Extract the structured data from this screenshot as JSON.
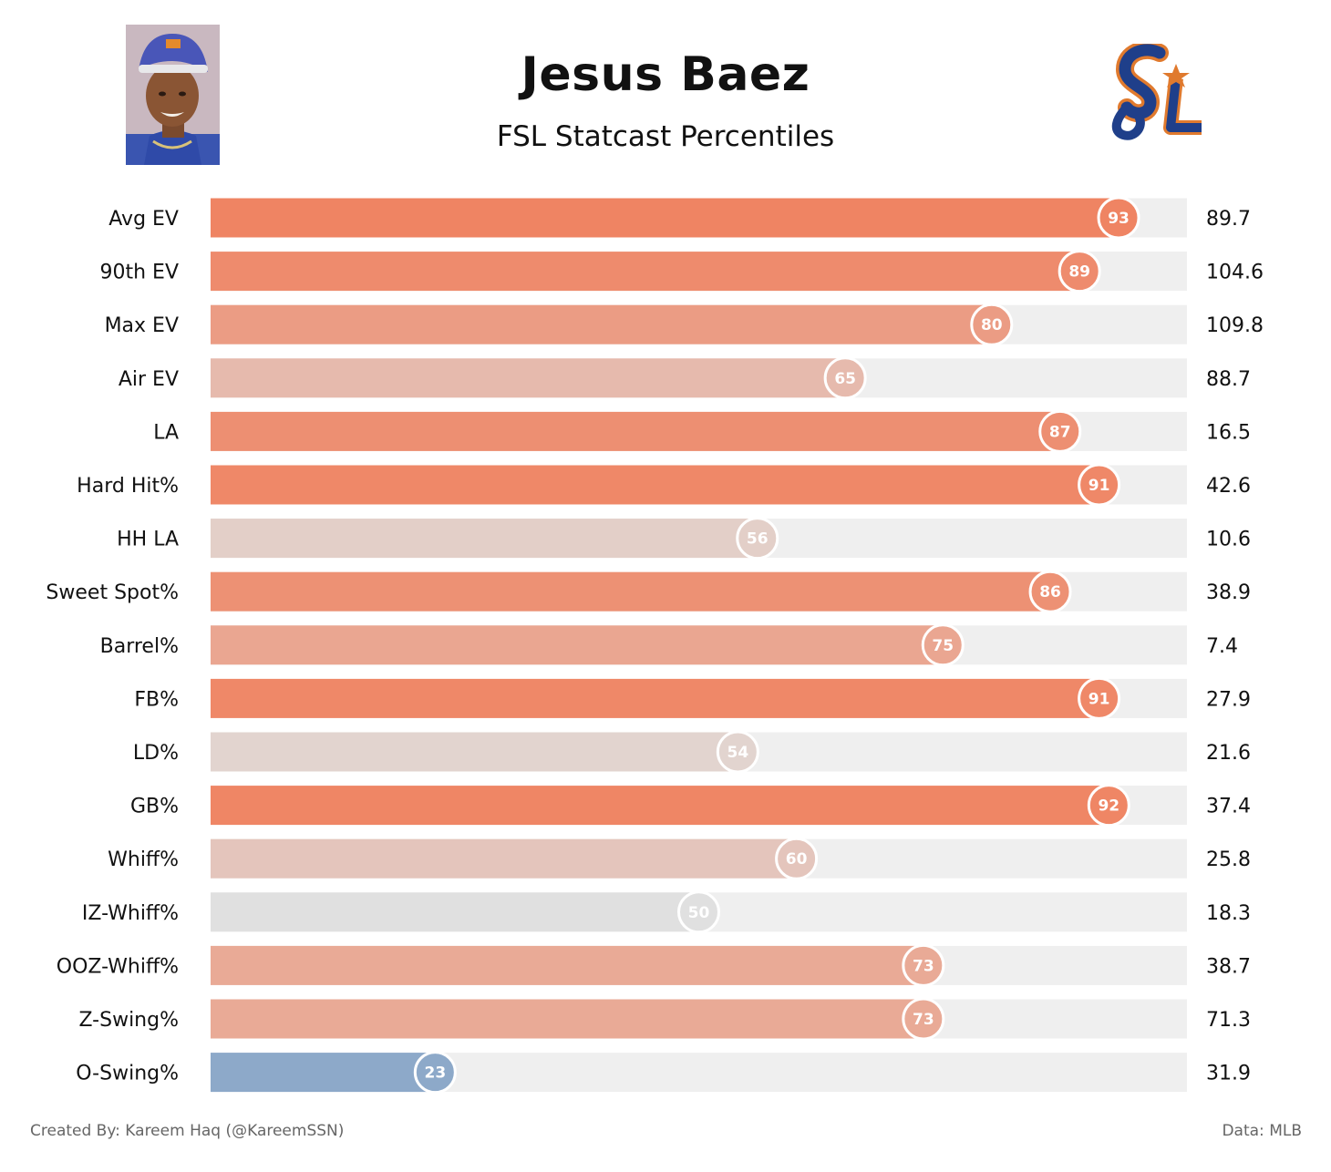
{
  "header": {
    "title": "Jesus Baez",
    "subtitle": "FSL Statcast Percentiles"
  },
  "footer": {
    "credit": "Created By: Kareem Haq (@KareemSSN)",
    "source": "Data: MLB"
  },
  "colors": {
    "high": "#f07f5c",
    "mid": "#e0e0e0",
    "low": "#8aa7c8",
    "track": "#efefef"
  },
  "chart_data": {
    "type": "bar",
    "orientation": "horizontal",
    "xlim": [
      0,
      100
    ],
    "categories": [
      "Avg EV",
      "90th EV",
      "Max EV",
      "Air EV",
      "LA",
      "Hard Hit%",
      "HH LA",
      "Sweet Spot%",
      "Barrel%",
      "FB%",
      "LD%",
      "GB%",
      "Whiff%",
      "IZ-Whiff%",
      "OOZ-Whiff%",
      "Z-Swing%",
      "O-Swing%"
    ],
    "percentiles": [
      93,
      89,
      80,
      65,
      87,
      91,
      56,
      86,
      75,
      91,
      54,
      92,
      60,
      50,
      73,
      73,
      23
    ],
    "stat_values": [
      "89.7",
      "104.6",
      "109.8",
      "88.7",
      "16.5",
      "42.6",
      "10.6",
      "38.9",
      "7.4",
      "27.9",
      "21.6",
      "37.4",
      "25.8",
      "18.3",
      "38.7",
      "71.3",
      "31.9"
    ]
  }
}
